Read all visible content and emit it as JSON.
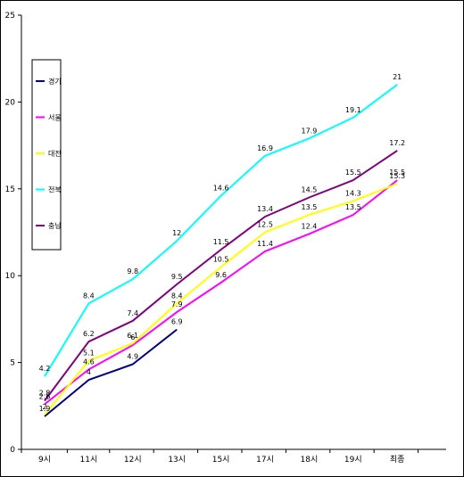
{
  "chart_data": {
    "type": "line",
    "categories": [
      "9시",
      "11시",
      "12시",
      "13시",
      "15시",
      "17시",
      "18시",
      "19시",
      "최종"
    ],
    "ylim": [
      0,
      25
    ],
    "yticks": [
      0,
      5,
      10,
      15,
      20,
      25
    ],
    "grid": false,
    "legend_position": "left",
    "series": [
      {
        "name": "경기",
        "color": "#000080",
        "values": [
          1.9,
          4,
          4.9,
          6.9,
          null,
          null,
          null,
          null,
          null
        ]
      },
      {
        "name": "서울",
        "color": "#FF00FF",
        "values": [
          2.6,
          4.6,
          6,
          7.9,
          9.6,
          11.4,
          12.4,
          13.5,
          15.5
        ]
      },
      {
        "name": "대전",
        "color": "#FFFF00",
        "values": [
          2,
          5.1,
          6.1,
          8.4,
          10.5,
          12.5,
          13.5,
          14.3,
          15.3
        ]
      },
      {
        "name": "전북",
        "color": "#00FFFF",
        "values": [
          4.2,
          8.4,
          9.8,
          12,
          14.6,
          16.9,
          17.9,
          19.1,
          21
        ]
      },
      {
        "name": "충남",
        "color": "#800080",
        "values": [
          2.8,
          6.2,
          7.4,
          9.5,
          11.5,
          13.4,
          14.5,
          15.5,
          17.2
        ]
      }
    ]
  }
}
